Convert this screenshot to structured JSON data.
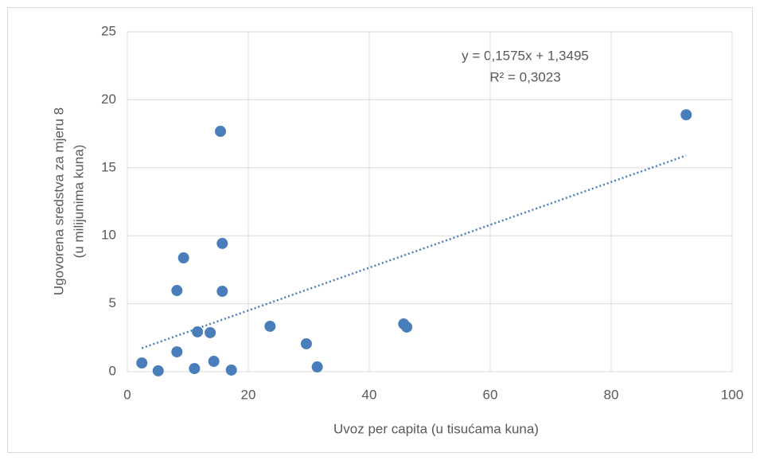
{
  "chart_data": {
    "type": "scatter",
    "xlabel": "Uvoz per capita (u tisućama kuna)",
    "ylabel": [
      "Ugovorena sredstva za mjeru 8",
      "(u milijunima kuna)"
    ],
    "x": [
      2.4,
      5.1,
      8.2,
      8.2,
      9.3,
      11.1,
      11.6,
      13.7,
      14.3,
      15.4,
      15.7,
      15.7,
      17.2,
      23.6,
      29.6,
      31.4,
      45.7,
      46.2,
      92.4
    ],
    "values": [
      0.64,
      0.06,
      5.97,
      1.46,
      8.37,
      0.23,
      2.93,
      2.87,
      0.76,
      17.68,
      9.43,
      5.91,
      0.12,
      3.34,
      2.05,
      0.35,
      3.51,
      3.28,
      18.9
    ],
    "color": "#4a7ebb",
    "xlim": [
      0,
      100
    ],
    "xticks": [
      0,
      20,
      40,
      60,
      80,
      100
    ],
    "ylim": [
      0,
      25
    ],
    "yticks": [
      0,
      5,
      10,
      15,
      20,
      25
    ],
    "grid": true,
    "trendline": {
      "slope": 0.1575,
      "intercept": 1.3495,
      "color": "#4a7ebb"
    },
    "annotations": [
      "y = 0,1575x + 1,3495",
      "R² = 0,3023"
    ]
  }
}
